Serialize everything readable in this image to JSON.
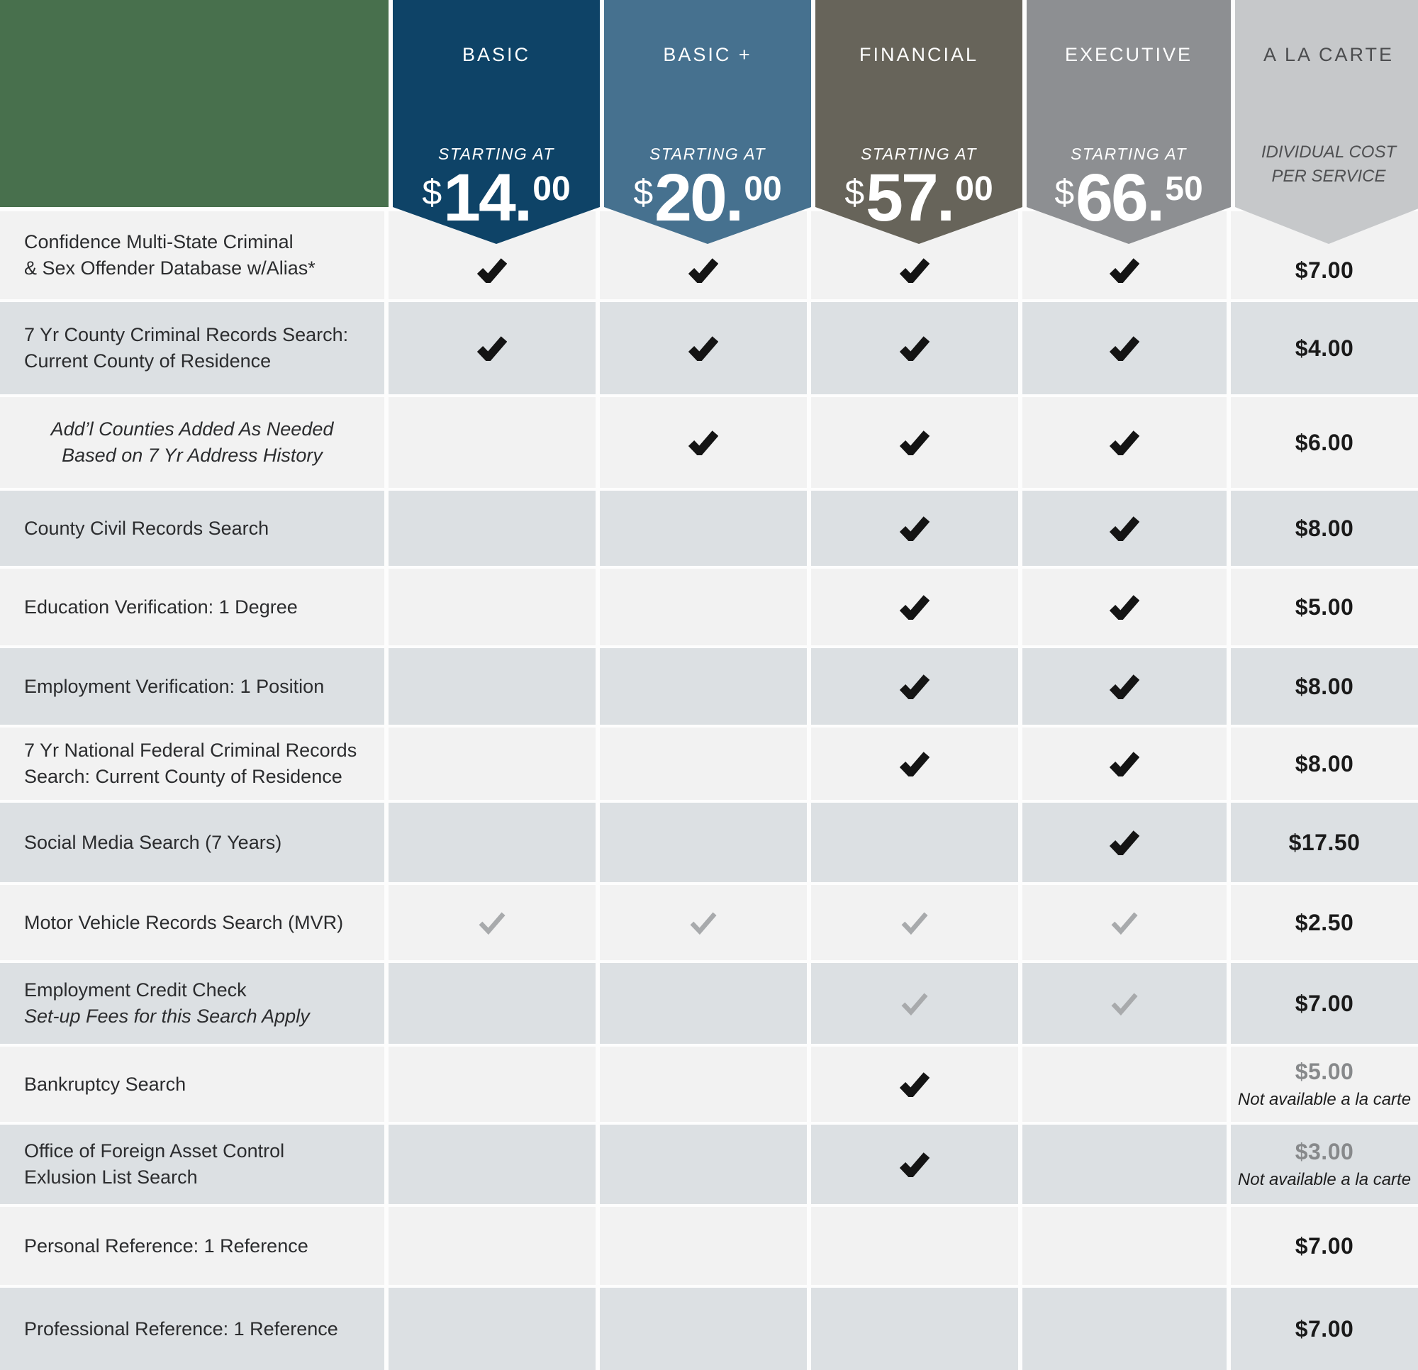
{
  "chart_data": {
    "type": "table",
    "columns": [
      {
        "id": "basic",
        "name": "BASIC",
        "tagline": "STARTING AT",
        "currency": "$",
        "dollars": "14.",
        "cents": "00",
        "color": "#0e4367"
      },
      {
        "id": "basic-plus",
        "name": "BASIC +",
        "tagline": "STARTING AT",
        "currency": "$",
        "dollars": "20.",
        "cents": "00",
        "color": "#46718f"
      },
      {
        "id": "financial",
        "name": "FINANCIAL",
        "tagline": "STARTING AT",
        "currency": "$",
        "dollars": "57.",
        "cents": "00",
        "color": "#67645a"
      },
      {
        "id": "executive",
        "name": "EXECUTIVE",
        "tagline": "STARTING AT",
        "currency": "$",
        "dollars": "66.",
        "cents": "50",
        "color": "#8d8f92"
      },
      {
        "id": "a-la-carte",
        "name": "A LA CARTE",
        "subtitle1": "IDIVIDUAL COST",
        "subtitle2": "PER SERVICE",
        "color": "#c6c8ca",
        "text_color": "#4b4c4e",
        "subtitle_color": "#4f5052"
      }
    ],
    "rows": [
      {
        "label_lines": [
          "Confidence Multi-State Criminal",
          "& Sex Offender Database w/Alias*"
        ],
        "checks": [
          "black",
          "black",
          "black",
          "black"
        ],
        "alacarte_price": "$7.00"
      },
      {
        "label_lines": [
          "7 Yr County Criminal Records Search:",
          "Current County of Residence"
        ],
        "checks": [
          "black",
          "black",
          "black",
          "black"
        ],
        "alacarte_price": "$4.00"
      },
      {
        "label_lines": [
          "Add’l Counties Added As Needed",
          "Based on 7 Yr Address History"
        ],
        "label_style": "italic-center",
        "checks": [
          "none",
          "black",
          "black",
          "black"
        ],
        "alacarte_price": "$6.00"
      },
      {
        "label_lines": [
          "County Civil Records Search"
        ],
        "checks": [
          "none",
          "none",
          "black",
          "black"
        ],
        "alacarte_price": "$8.00"
      },
      {
        "label_lines": [
          "Education Verification: 1 Degree"
        ],
        "checks": [
          "none",
          "none",
          "black",
          "black"
        ],
        "alacarte_price": "$5.00"
      },
      {
        "label_lines": [
          "Employment Verification: 1 Position"
        ],
        "checks": [
          "none",
          "none",
          "black",
          "black"
        ],
        "alacarte_price": "$8.00"
      },
      {
        "label_lines": [
          "7 Yr National Federal Criminal Records",
          "Search: Current County of Residence"
        ],
        "checks": [
          "none",
          "none",
          "black",
          "black"
        ],
        "alacarte_price": "$8.00"
      },
      {
        "label_lines": [
          "Social Media Search (7 Years)"
        ],
        "checks": [
          "none",
          "none",
          "none",
          "black"
        ],
        "alacarte_price": "$17.50"
      },
      {
        "label_lines": [
          "Motor Vehicle Records Search (MVR)"
        ],
        "checks": [
          "gray",
          "gray",
          "gray",
          "gray"
        ],
        "alacarte_price": "$2.50"
      },
      {
        "label_lines": [
          "Employment Credit Check",
          "Set-up Fees for this Search Apply"
        ],
        "line2_italic": true,
        "checks": [
          "none",
          "none",
          "gray",
          "gray"
        ],
        "alacarte_price": "$7.00"
      },
      {
        "label_lines": [
          "Bankruptcy Search"
        ],
        "checks": [
          "none",
          "none",
          "black",
          "none"
        ],
        "alacarte_price": "$5.00",
        "price_muted": true,
        "note": "Not available a la carte"
      },
      {
        "label_lines": [
          "Office of Foreign Asset Control",
          "Exlusion List Search"
        ],
        "checks": [
          "none",
          "none",
          "black",
          "none"
        ],
        "alacarte_price": "$3.00",
        "price_muted": true,
        "note": "Not available a la carte"
      },
      {
        "label_lines": [
          "Personal Reference: 1 Reference"
        ],
        "checks": [
          "none",
          "none",
          "none",
          "none"
        ],
        "alacarte_price": "$7.00"
      },
      {
        "label_lines": [
          "Professional Reference: 1 Reference"
        ],
        "checks": [
          "none",
          "none",
          "none",
          "none"
        ],
        "alacarte_price": "$7.00"
      }
    ]
  },
  "colors": {
    "corner_green": "#48704d",
    "row_light": "#f2f2f2",
    "row_dark": "#dce0e3",
    "check_black": "#141414",
    "check_gray": "#a8aaac",
    "price_black": "#1a1a1a",
    "price_muted": "#87898b"
  }
}
